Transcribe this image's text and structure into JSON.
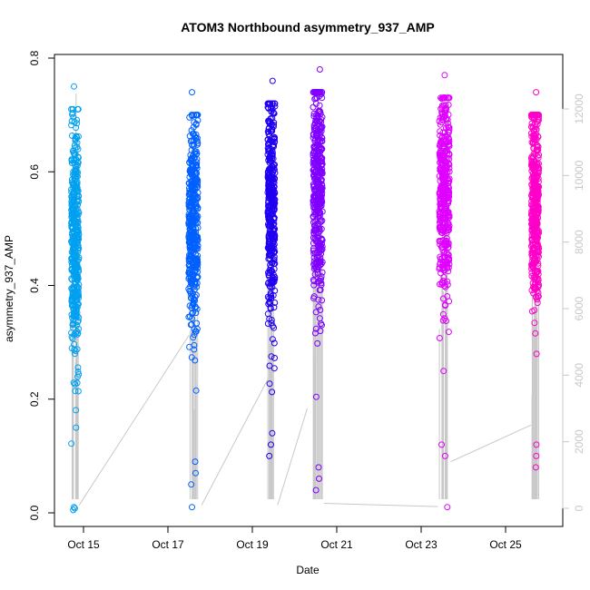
{
  "chart_data": {
    "type": "scatter",
    "title": "ATOM3 Northbound asymmetry_937_AMP",
    "xlabel": "Date",
    "ylabel": "asymmetry_937_AMP",
    "x_ticks": [
      "Oct 15",
      "Oct 17",
      "Oct 19",
      "Oct 21",
      "Oct 23",
      "Oct 25"
    ],
    "y_ticks": [
      "0.0",
      "0.2",
      "0.4",
      "0.6",
      "0.8"
    ],
    "y_tick_values": [
      0.0,
      0.2,
      0.4,
      0.6,
      0.8
    ],
    "ylim": [
      0.0,
      0.8
    ],
    "secondary_axis": {
      "ticks": [
        "0",
        "2000",
        "4000",
        "6000",
        "8000",
        "10000",
        "12000"
      ],
      "tick_values": [
        0,
        2000,
        4000,
        6000,
        8000,
        10000,
        12000
      ],
      "ylim": [
        0,
        12600
      ],
      "color": "#c8c8c8"
    },
    "clusters": [
      {
        "day": 14.8,
        "width": 0.18,
        "ymin": 0.12,
        "ymax": 0.75,
        "center": 0.47,
        "color": "#00a0f0",
        "extra": [
          0.005,
          0.008,
          0.01,
          0.75,
          0.15
        ]
      },
      {
        "day": 17.6,
        "width": 0.22,
        "ymin": 0.15,
        "ymax": 0.74,
        "center": 0.5,
        "color": "#0060ff",
        "extra": [
          0.01,
          0.05,
          0.07,
          0.09,
          0.74
        ]
      },
      {
        "day": 19.45,
        "width": 0.17,
        "ymin": 0.1,
        "ymax": 0.76,
        "center": 0.55,
        "color": "#2000f0",
        "extra": [
          0.1,
          0.12,
          0.14,
          0.76
        ]
      },
      {
        "day": 20.55,
        "width": 0.22,
        "ymin": 0.04,
        "ymax": 0.78,
        "center": 0.58,
        "color": "#8000ff",
        "extra": [
          0.04,
          0.06,
          0.08,
          0.78
        ]
      },
      {
        "day": 23.55,
        "width": 0.24,
        "ymin": 0.1,
        "ymax": 0.77,
        "center": 0.55,
        "color": "#e000ff",
        "extra": [
          0.01,
          0.1,
          0.12,
          0.77
        ]
      },
      {
        "day": 25.7,
        "width": 0.18,
        "ymin": 0.08,
        "ymax": 0.74,
        "center": 0.55,
        "color": "#ff00c8",
        "extra": [
          0.08,
          0.1,
          0.12,
          0.74
        ]
      }
    ],
    "connector_lines": [
      [
        14.9,
        100,
        17.5,
        5200
      ],
      [
        17.8,
        100,
        19.5,
        4200
      ],
      [
        19.6,
        100,
        20.3,
        3000
      ],
      [
        20.7,
        150,
        23.4,
        50
      ],
      [
        23.7,
        1400,
        25.6,
        2500
      ]
    ],
    "grid": false,
    "legend": "none"
  }
}
